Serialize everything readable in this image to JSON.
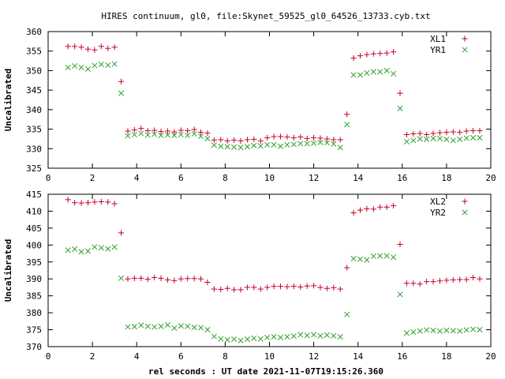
{
  "title": "HIRES continuum, gl0, file:Skynet_59525_gl0_64526_13733.cyb.txt",
  "xlabel": "rel seconds : UT date 2021-11-07T19:15:26.360",
  "colors": {
    "red": "#c8002a",
    "green": "#2ea02e",
    "axis": "#000000"
  },
  "chart_data": [
    {
      "type": "scatter",
      "ylabel": "Uncalibrated",
      "xlim": [
        0,
        20
      ],
      "ylim": [
        325,
        360
      ],
      "xticks": [
        0,
        2,
        4,
        6,
        8,
        10,
        12,
        14,
        16,
        18,
        20
      ],
      "yticks": [
        325,
        330,
        335,
        340,
        345,
        350,
        355,
        360
      ],
      "legend_position": "top-right",
      "series": [
        {
          "name": "XL1",
          "marker": "plus",
          "color": "#c8002a",
          "x": [
            0.9,
            1.2,
            1.5,
            1.8,
            2.1,
            2.4,
            2.7,
            3.0,
            3.3,
            3.6,
            3.9,
            4.2,
            4.5,
            4.8,
            5.1,
            5.4,
            5.7,
            6.0,
            6.3,
            6.6,
            6.9,
            7.2,
            7.5,
            7.8,
            8.1,
            8.4,
            8.7,
            9.0,
            9.3,
            9.6,
            9.9,
            10.2,
            10.5,
            10.8,
            11.1,
            11.4,
            11.7,
            12.0,
            12.3,
            12.6,
            12.9,
            13.2,
            13.5,
            13.8,
            14.1,
            14.4,
            14.7,
            15.0,
            15.3,
            15.6,
            15.9,
            16.2,
            16.5,
            16.8,
            17.1,
            17.4,
            17.7,
            18.0,
            18.3,
            18.6,
            18.9,
            19.2,
            19.5
          ],
          "y": [
            356.2,
            356.2,
            356.0,
            355.5,
            355.3,
            356.2,
            355.7,
            356.0,
            347.2,
            334.5,
            334.8,
            335.2,
            334.6,
            334.7,
            334.4,
            334.5,
            334.3,
            334.7,
            334.6,
            334.9,
            334.2,
            334.0,
            332.2,
            332.3,
            332.0,
            332.2,
            332.0,
            332.3,
            332.4,
            332.0,
            332.8,
            333.1,
            333.1,
            333.0,
            332.8,
            333.0,
            332.6,
            332.8,
            332.7,
            332.5,
            332.3,
            332.3,
            338.8,
            353.2,
            353.8,
            354.1,
            354.3,
            354.4,
            354.5,
            354.8,
            344.2,
            333.6,
            333.8,
            333.9,
            333.6,
            333.9,
            334.1,
            334.2,
            334.3,
            334.2,
            334.5,
            334.6,
            334.6
          ]
        },
        {
          "name": "YR1",
          "marker": "x",
          "color": "#2ea02e",
          "x": [
            0.9,
            1.2,
            1.5,
            1.8,
            2.1,
            2.4,
            2.7,
            3.0,
            3.3,
            3.6,
            3.9,
            4.2,
            4.5,
            4.8,
            5.1,
            5.4,
            5.7,
            6.0,
            6.3,
            6.6,
            6.9,
            7.2,
            7.5,
            7.8,
            8.1,
            8.4,
            8.7,
            9.0,
            9.3,
            9.6,
            9.9,
            10.2,
            10.5,
            10.8,
            11.1,
            11.4,
            11.7,
            12.0,
            12.3,
            12.6,
            12.9,
            13.2,
            13.5,
            13.8,
            14.1,
            14.4,
            14.7,
            15.0,
            15.3,
            15.6,
            15.9,
            16.2,
            16.5,
            16.8,
            17.1,
            17.4,
            17.7,
            18.0,
            18.3,
            18.6,
            18.9,
            19.2,
            19.5
          ],
          "y": [
            350.8,
            351.2,
            350.8,
            350.4,
            351.3,
            351.6,
            351.4,
            351.7,
            344.2,
            333.3,
            333.6,
            333.9,
            333.5,
            333.7,
            333.4,
            333.5,
            333.4,
            333.6,
            333.4,
            333.8,
            333.2,
            332.6,
            330.9,
            330.6,
            330.5,
            330.4,
            330.3,
            330.5,
            330.8,
            330.7,
            331.0,
            331.0,
            330.6,
            331.0,
            331.1,
            331.3,
            331.3,
            331.4,
            331.6,
            331.5,
            331.2,
            330.3,
            336.2,
            348.9,
            348.9,
            349.4,
            349.7,
            349.7,
            350.0,
            349.2,
            340.3,
            331.8,
            332.1,
            332.5,
            332.4,
            332.6,
            332.6,
            332.4,
            332.1,
            332.4,
            332.7,
            332.8,
            332.8
          ]
        }
      ]
    },
    {
      "type": "scatter",
      "ylabel": "Uncalibrated",
      "xlim": [
        0,
        20
      ],
      "ylim": [
        370,
        415
      ],
      "xticks": [
        0,
        2,
        4,
        6,
        8,
        10,
        12,
        14,
        16,
        18,
        20
      ],
      "yticks": [
        370,
        375,
        380,
        385,
        390,
        395,
        400,
        405,
        410,
        415
      ],
      "legend_position": "top-right",
      "series": [
        {
          "name": "XL2",
          "marker": "plus",
          "color": "#c8002a",
          "x": [
            0.9,
            1.2,
            1.5,
            1.8,
            2.1,
            2.4,
            2.7,
            3.0,
            3.3,
            3.6,
            3.9,
            4.2,
            4.5,
            4.8,
            5.1,
            5.4,
            5.7,
            6.0,
            6.3,
            6.6,
            6.9,
            7.2,
            7.5,
            7.8,
            8.1,
            8.4,
            8.7,
            9.0,
            9.3,
            9.6,
            9.9,
            10.2,
            10.5,
            10.8,
            11.1,
            11.4,
            11.7,
            12.0,
            12.3,
            12.6,
            12.9,
            13.2,
            13.5,
            13.8,
            14.1,
            14.4,
            14.7,
            15.0,
            15.3,
            15.6,
            15.9,
            16.2,
            16.5,
            16.8,
            17.1,
            17.4,
            17.7,
            18.0,
            18.3,
            18.6,
            18.9,
            19.2,
            19.5
          ],
          "y": [
            413.4,
            412.5,
            412.4,
            412.5,
            412.7,
            412.8,
            412.7,
            412.2,
            403.6,
            390.0,
            390.2,
            390.2,
            389.9,
            390.4,
            390.2,
            389.7,
            389.5,
            390.0,
            390.1,
            390.1,
            390.0,
            389.0,
            387.0,
            386.9,
            387.2,
            386.8,
            386.8,
            387.5,
            387.5,
            387.0,
            387.5,
            387.8,
            387.8,
            387.7,
            387.8,
            387.6,
            387.9,
            388.0,
            387.5,
            387.2,
            387.4,
            387.0,
            393.3,
            409.5,
            410.3,
            410.7,
            410.6,
            411.2,
            411.2,
            411.6,
            400.2,
            388.7,
            388.7,
            388.5,
            389.2,
            389.2,
            389.4,
            389.6,
            389.7,
            389.8,
            389.8,
            390.4,
            390.0
          ]
        },
        {
          "name": "YR2",
          "marker": "x",
          "color": "#2ea02e",
          "x": [
            0.9,
            1.2,
            1.5,
            1.8,
            2.1,
            2.4,
            2.7,
            3.0,
            3.3,
            3.6,
            3.9,
            4.2,
            4.5,
            4.8,
            5.1,
            5.4,
            5.7,
            6.0,
            6.3,
            6.6,
            6.9,
            7.2,
            7.5,
            7.8,
            8.1,
            8.4,
            8.7,
            9.0,
            9.3,
            9.6,
            9.9,
            10.2,
            10.5,
            10.8,
            11.1,
            11.4,
            11.7,
            12.0,
            12.3,
            12.6,
            12.9,
            13.2,
            13.5,
            13.8,
            14.1,
            14.4,
            14.7,
            15.0,
            15.3,
            15.6,
            15.9,
            16.2,
            16.5,
            16.8,
            17.1,
            17.4,
            17.7,
            18.0,
            18.3,
            18.6,
            18.9,
            19.2,
            19.5
          ],
          "y": [
            398.5,
            398.8,
            398.0,
            398.2,
            399.4,
            399.2,
            398.9,
            399.4,
            390.2,
            375.8,
            375.9,
            376.3,
            376.0,
            375.8,
            376.0,
            376.4,
            375.5,
            376.1,
            376.0,
            375.7,
            375.6,
            375.0,
            373.0,
            372.3,
            372.0,
            372.2,
            371.8,
            372.2,
            372.5,
            372.3,
            372.7,
            372.9,
            372.7,
            372.9,
            373.1,
            373.5,
            373.3,
            373.5,
            373.2,
            373.4,
            373.2,
            372.9,
            379.5,
            396.0,
            395.8,
            395.6,
            396.7,
            396.8,
            396.8,
            396.4,
            385.4,
            374.0,
            374.3,
            374.6,
            374.9,
            374.8,
            374.6,
            374.8,
            374.7,
            374.6,
            374.9,
            375.1,
            375.0
          ]
        }
      ]
    }
  ]
}
